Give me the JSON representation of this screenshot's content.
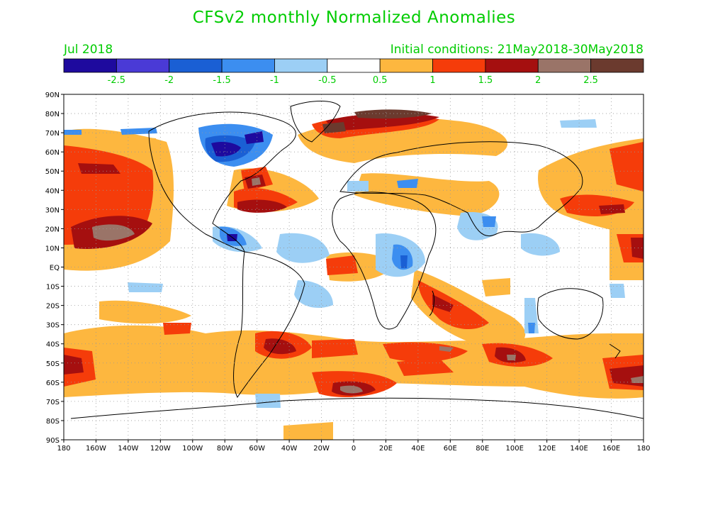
{
  "header": {
    "title": "CFSv2 monthly Normalized Anomalies",
    "month": "Jul 2018",
    "init": "Initial conditions: 21May2018-30May2018"
  },
  "colorbar": {
    "colors": [
      "#1e0a9e",
      "#4a3ad6",
      "#1a5fd4",
      "#3c8ef0",
      "#9ccff5",
      "#ffffff",
      "#fdb73f",
      "#f53c0a",
      "#a50f0f",
      "#9a7468",
      "#6b3a2e"
    ],
    "labels": [
      "-2.5",
      "-2",
      "-1.5",
      "-1",
      "-0.5",
      "0.5",
      "1",
      "1.5",
      "2",
      "2.5"
    ]
  },
  "map": {
    "lat_labels": [
      "90N",
      "80N",
      "70N",
      "60N",
      "50N",
      "40N",
      "30N",
      "20N",
      "10N",
      "EQ",
      "10S",
      "20S",
      "30S",
      "40S",
      "50S",
      "60S",
      "70S",
      "80S",
      "90S"
    ],
    "lon_labels": [
      "180",
      "160W",
      "140W",
      "120W",
      "100W",
      "80W",
      "60W",
      "40W",
      "20W",
      "0",
      "20E",
      "40E",
      "60E",
      "80E",
      "100E",
      "120E",
      "140E",
      "160E",
      "180"
    ]
  }
}
